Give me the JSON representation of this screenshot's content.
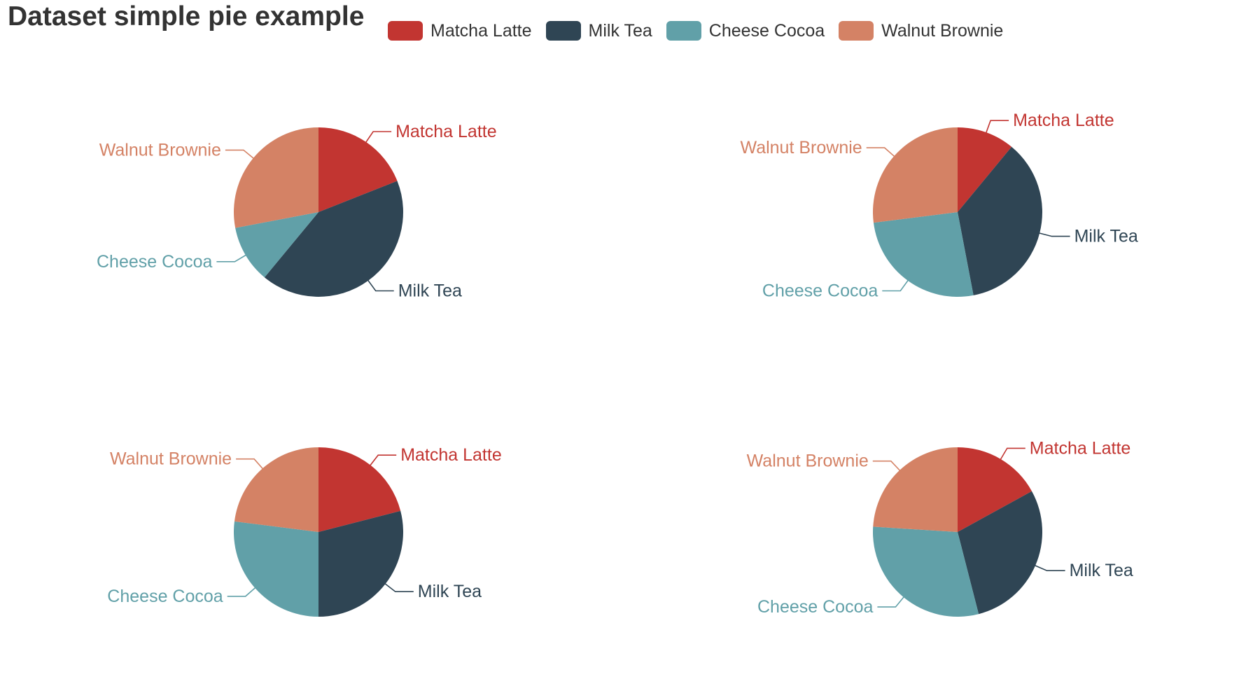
{
  "title": "Dataset simple pie example",
  "legend": {
    "items": [
      {
        "label": "Matcha Latte",
        "color": "#c23531"
      },
      {
        "label": "Milk Tea",
        "color": "#2f4554"
      },
      {
        "label": "Cheese Cocoa",
        "color": "#61a0a8"
      },
      {
        "label": "Walnut Brownie",
        "color": "#d48265"
      }
    ]
  },
  "chart_data": {
    "type": "pie",
    "title": "Dataset simple pie example",
    "legend_placement": "top",
    "categories": [
      "Matcha Latte",
      "Milk Tea",
      "Cheese Cocoa",
      "Walnut Brownie"
    ],
    "colors": [
      "#c23531",
      "#2f4554",
      "#61a0a8",
      "#d48265"
    ],
    "charts": [
      {
        "values": [
          19,
          42,
          11,
          28
        ]
      },
      {
        "values": [
          11,
          36,
          26,
          27
        ]
      },
      {
        "values": [
          21,
          29,
          27,
          23
        ]
      },
      {
        "values": [
          17,
          29,
          30,
          24
        ]
      }
    ]
  }
}
